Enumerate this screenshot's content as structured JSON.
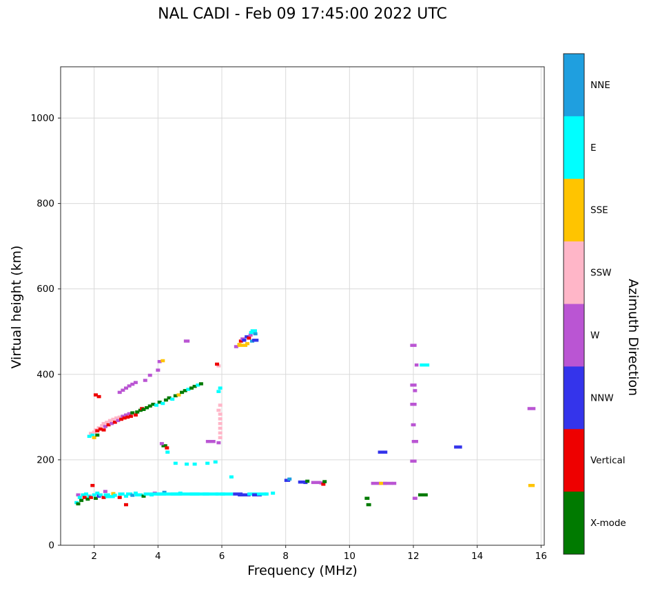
{
  "title": "NAL CADI - Feb 09 17:45:00 2022 UTC",
  "chart_data": {
    "type": "scatter",
    "title": "NAL CADI - Feb 09 17:45:00 2022 UTC",
    "xlabel": "Frequency (MHz)",
    "ylabel": "Virtual height (km)",
    "xlim": [
      0.95,
      16.1
    ],
    "ylim": [
      0,
      1120
    ],
    "xticks": [
      2,
      4,
      6,
      8,
      10,
      12,
      14,
      16
    ],
    "yticks": [
      0,
      200,
      400,
      600,
      800,
      1000
    ],
    "grid": true,
    "grid_color": "#d9d9d9",
    "colorbar": {
      "label": "Azimuth Direction",
      "orientation": "vertical",
      "categories": [
        {
          "name": "NNE",
          "color": "#1f9fdf"
        },
        {
          "name": "E",
          "color": "#00ffff"
        },
        {
          "name": "SSE",
          "color": "#ffc400"
        },
        {
          "name": "SSW",
          "color": "#ffb6c8"
        },
        {
          "name": "W",
          "color": "#ba55d3"
        },
        {
          "name": "NNW",
          "color": "#3434eb"
        },
        {
          "name": "Vertical",
          "color": "#ee0000"
        },
        {
          "name": "X-mode",
          "color": "#007a00"
        }
      ]
    },
    "points_format": [
      "freq_MHz",
      "height_km",
      "category",
      "width_MHz_optional"
    ],
    "points": [
      [
        1.45,
        100,
        "E"
      ],
      [
        1.5,
        97,
        "X-mode"
      ],
      [
        1.5,
        118,
        "W"
      ],
      [
        1.55,
        112,
        "E"
      ],
      [
        1.6,
        105,
        "X-mode"
      ],
      [
        1.65,
        118,
        "E"
      ],
      [
        1.7,
        112,
        "Vertical"
      ],
      [
        1.75,
        120,
        "E"
      ],
      [
        1.8,
        108,
        "X-mode"
      ],
      [
        1.85,
        115,
        "E"
      ],
      [
        1.9,
        112,
        "Vertical"
      ],
      [
        1.95,
        140,
        "Vertical"
      ],
      [
        2.0,
        118,
        "E"
      ],
      [
        2.05,
        110,
        "X-mode"
      ],
      [
        2.1,
        122,
        "E"
      ],
      [
        2.15,
        115,
        "NNW"
      ],
      [
        2.2,
        118,
        "E"
      ],
      [
        2.3,
        112,
        "Vertical"
      ],
      [
        2.35,
        126,
        "W"
      ],
      [
        2.4,
        118,
        "E",
        0.2
      ],
      [
        2.5,
        114,
        "E",
        0.3
      ],
      [
        2.6,
        121,
        "SSE"
      ],
      [
        2.65,
        117,
        "E"
      ],
      [
        2.8,
        112,
        "Vertical"
      ],
      [
        2.85,
        120,
        "E",
        0.2
      ],
      [
        3.0,
        115,
        "E"
      ],
      [
        3.0,
        95,
        "Vertical"
      ],
      [
        3.1,
        120,
        "E",
        0.2
      ],
      [
        3.2,
        117,
        "NNE"
      ],
      [
        3.3,
        122,
        "E"
      ],
      [
        3.4,
        118,
        "E",
        0.25
      ],
      [
        3.55,
        115,
        "X-mode"
      ],
      [
        3.65,
        120,
        "E",
        0.2
      ],
      [
        3.8,
        118,
        "E"
      ],
      [
        3.9,
        122,
        "W"
      ],
      [
        4.0,
        120,
        "E",
        0.5
      ],
      [
        4.2,
        124,
        "NNE"
      ],
      [
        4.35,
        120,
        "E",
        0.8
      ],
      [
        4.7,
        122,
        "E"
      ],
      [
        4.85,
        120,
        "E",
        0.9
      ],
      [
        5.3,
        120,
        "E",
        0.6
      ],
      [
        5.65,
        120,
        "E",
        0.5
      ],
      [
        5.95,
        120,
        "E",
        0.3
      ],
      [
        6.15,
        120,
        "E",
        0.4
      ],
      [
        6.3,
        160,
        "E"
      ],
      [
        6.5,
        120,
        "NNW",
        0.3
      ],
      [
        6.7,
        118,
        "NNW",
        0.4
      ],
      [
        6.95,
        120,
        "E",
        0.3
      ],
      [
        7.1,
        118,
        "NNW",
        0.3
      ],
      [
        7.25,
        120,
        "E",
        0.3
      ],
      [
        7.4,
        120,
        "E"
      ],
      [
        7.6,
        122,
        "E"
      ],
      [
        1.85,
        255,
        "E"
      ],
      [
        1.9,
        262,
        "SSW"
      ],
      [
        1.95,
        258,
        "E"
      ],
      [
        2.0,
        252,
        "SSE"
      ],
      [
        2.0,
        265,
        "SSW"
      ],
      [
        2.05,
        270,
        "SSW"
      ],
      [
        2.1,
        268,
        "Vertical"
      ],
      [
        2.1,
        258,
        "X-mode"
      ],
      [
        2.15,
        275,
        "SSW"
      ],
      [
        2.2,
        272,
        "Vertical"
      ],
      [
        2.25,
        280,
        "SSW"
      ],
      [
        2.3,
        270,
        "Vertical"
      ],
      [
        2.3,
        285,
        "SSW"
      ],
      [
        2.35,
        278,
        "W"
      ],
      [
        2.4,
        288,
        "SSW"
      ],
      [
        2.45,
        282,
        "Vertical"
      ],
      [
        2.5,
        292,
        "SSW"
      ],
      [
        2.55,
        285,
        "W"
      ],
      [
        2.6,
        295,
        "SSW"
      ],
      [
        2.65,
        288,
        "Vertical"
      ],
      [
        2.7,
        298,
        "SSW"
      ],
      [
        2.75,
        292,
        "W"
      ],
      [
        2.8,
        300,
        "SSW"
      ],
      [
        2.85,
        295,
        "Vertical"
      ],
      [
        2.9,
        302,
        "W"
      ],
      [
        2.95,
        298,
        "Vertical"
      ],
      [
        3.0,
        305,
        "W"
      ],
      [
        3.05,
        300,
        "Vertical"
      ],
      [
        3.1,
        308,
        "W"
      ],
      [
        3.15,
        302,
        "Vertical"
      ],
      [
        3.2,
        310,
        "X-mode"
      ],
      [
        3.3,
        305,
        "Vertical"
      ],
      [
        3.35,
        312,
        "X-mode"
      ],
      [
        3.45,
        316,
        "X-mode"
      ],
      [
        3.5,
        320,
        "Vertical"
      ],
      [
        3.55,
        318,
        "X-mode"
      ],
      [
        3.65,
        322,
        "X-mode"
      ],
      [
        3.75,
        326,
        "X-mode"
      ],
      [
        3.85,
        330,
        "X-mode"
      ],
      [
        3.95,
        328,
        "E"
      ],
      [
        4.05,
        335,
        "X-mode"
      ],
      [
        4.15,
        332,
        "E"
      ],
      [
        4.25,
        340,
        "X-mode"
      ],
      [
        4.35,
        345,
        "X-mode"
      ],
      [
        4.45,
        342,
        "E"
      ],
      [
        4.55,
        350,
        "X-mode"
      ],
      [
        4.65,
        352,
        "SSE"
      ],
      [
        4.75,
        358,
        "X-mode"
      ],
      [
        4.85,
        362,
        "X-mode"
      ],
      [
        4.95,
        365,
        "E"
      ],
      [
        5.05,
        368,
        "X-mode"
      ],
      [
        5.15,
        372,
        "X-mode"
      ],
      [
        5.25,
        375,
        "E"
      ],
      [
        5.35,
        378,
        "X-mode"
      ],
      [
        2.05,
        352,
        "Vertical"
      ],
      [
        2.15,
        348,
        "Vertical"
      ],
      [
        2.8,
        358,
        "W"
      ],
      [
        2.9,
        363,
        "W"
      ],
      [
        3.0,
        368,
        "W"
      ],
      [
        3.1,
        373,
        "W"
      ],
      [
        3.2,
        377,
        "W"
      ],
      [
        3.3,
        381,
        "W"
      ],
      [
        3.6,
        386,
        "W"
      ],
      [
        3.75,
        398,
        "W"
      ],
      [
        4.0,
        410,
        "W"
      ],
      [
        4.05,
        430,
        "W"
      ],
      [
        4.15,
        432,
        "SSE"
      ],
      [
        4.2,
        233,
        "X-mode",
        0.18
      ],
      [
        4.12,
        238,
        "W"
      ],
      [
        4.28,
        228,
        "Vertical"
      ],
      [
        4.3,
        218,
        "E"
      ],
      [
        4.55,
        192,
        "E"
      ],
      [
        4.9,
        190,
        "E"
      ],
      [
        5.15,
        190,
        "E"
      ],
      [
        5.55,
        192,
        "E"
      ],
      [
        5.8,
        195,
        "E"
      ],
      [
        5.65,
        243,
        "W",
        0.3
      ],
      [
        5.9,
        240,
        "W"
      ],
      [
        5.95,
        252,
        "SSW"
      ],
      [
        5.95,
        263,
        "SSW"
      ],
      [
        5.95,
        274,
        "SSW"
      ],
      [
        5.95,
        285,
        "SSW"
      ],
      [
        5.95,
        296,
        "SSW"
      ],
      [
        5.95,
        307,
        "SSW"
      ],
      [
        5.9,
        316,
        "SSW"
      ],
      [
        5.95,
        328,
        "SSW"
      ],
      [
        5.9,
        360,
        "E"
      ],
      [
        5.95,
        368,
        "E"
      ],
      [
        5.9,
        420,
        "SSW"
      ],
      [
        5.85,
        424,
        "Vertical"
      ],
      [
        4.9,
        478,
        "W",
        0.18
      ],
      [
        6.45,
        465,
        "W"
      ],
      [
        6.55,
        470,
        "SSE"
      ],
      [
        6.65,
        468,
        "SSE",
        0.3
      ],
      [
        6.8,
        472,
        "SSE"
      ],
      [
        6.6,
        478,
        "Vertical"
      ],
      [
        6.65,
        483,
        "W"
      ],
      [
        6.7,
        480,
        "NNW"
      ],
      [
        6.78,
        488,
        "NNW"
      ],
      [
        6.85,
        485,
        "Vertical"
      ],
      [
        6.9,
        492,
        "W"
      ],
      [
        6.92,
        498,
        "E"
      ],
      [
        7.0,
        502,
        "E",
        0.2
      ],
      [
        7.05,
        495,
        "NNE"
      ],
      [
        6.95,
        478,
        "NNE"
      ],
      [
        7.05,
        480,
        "NNW",
        0.2
      ],
      [
        8.05,
        152,
        "NNW",
        0.18
      ],
      [
        8.12,
        155,
        "NNE"
      ],
      [
        8.5,
        148,
        "NNW",
        0.22
      ],
      [
        8.62,
        147,
        "NNW"
      ],
      [
        8.68,
        150,
        "X-mode"
      ],
      [
        8.95,
        147,
        "W",
        0.3
      ],
      [
        9.12,
        146,
        "W"
      ],
      [
        9.18,
        143,
        "Vertical"
      ],
      [
        9.22,
        149,
        "X-mode"
      ],
      [
        10.55,
        110,
        "X-mode",
        0.15
      ],
      [
        10.6,
        95,
        "X-mode",
        0.15
      ],
      [
        10.85,
        145,
        "W",
        0.35
      ],
      [
        11.05,
        145,
        "SSE",
        0.25
      ],
      [
        11.2,
        145,
        "W",
        0.3
      ],
      [
        11.4,
        145,
        "W"
      ],
      [
        10.98,
        218,
        "NNW",
        0.18
      ],
      [
        11.12,
        218,
        "NNW"
      ],
      [
        12.0,
        468,
        "W",
        0.2
      ],
      [
        12.1,
        422,
        "W",
        0.12
      ],
      [
        12.35,
        422,
        "E",
        0.3
      ],
      [
        12.0,
        375,
        "W",
        0.2
      ],
      [
        12.05,
        362,
        "W"
      ],
      [
        12.0,
        330,
        "W",
        0.2
      ],
      [
        12.0,
        282,
        "W",
        0.15
      ],
      [
        12.05,
        243,
        "W",
        0.2
      ],
      [
        12.0,
        197,
        "W",
        0.2
      ],
      [
        12.05,
        110,
        "W",
        0.15
      ],
      [
        12.3,
        118,
        "X-mode",
        0.3
      ],
      [
        13.4,
        230,
        "NNW",
        0.25
      ],
      [
        15.7,
        320,
        "W",
        0.25
      ],
      [
        15.7,
        140,
        "SSE",
        0.2
      ]
    ]
  }
}
